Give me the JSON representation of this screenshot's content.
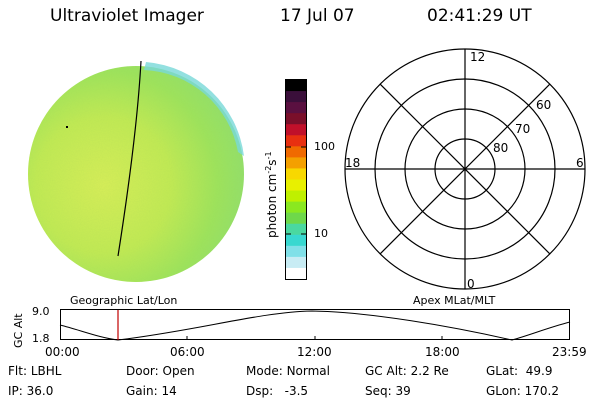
{
  "header": {
    "title": "Ultraviolet Imager",
    "date": "17 Jul 07",
    "time": "02:41:29 UT"
  },
  "colorbar": {
    "label": "photon cm",
    "label_exp1": "-2",
    "label_s": "s",
    "label_exp2": "-1",
    "tick_100": "100",
    "tick_10": "10",
    "colors": [
      "#000000",
      "#3a0f3a",
      "#5a1040",
      "#7a0f2a",
      "#c0102a",
      "#e83010",
      "#f06a00",
      "#f4a000",
      "#f8d800",
      "#e8f000",
      "#bff000",
      "#8ae820",
      "#6ed84a",
      "#4ad8a0",
      "#38d8d0",
      "#80e0e8",
      "#c8ecf4",
      "#ffffff"
    ]
  },
  "polar_plot": {
    "hour_labels": {
      "top": "12",
      "bottom": "0",
      "left": "18",
      "right": "6"
    },
    "lat_labels": [
      "60",
      "70",
      "80"
    ]
  },
  "timeline": {
    "left_label": "Geographic Lat/Lon",
    "right_label": "Apex MLat/MLT",
    "y_axis_label": "GC Alt",
    "y_top": "9.0",
    "y_bottom": "1.8",
    "x_ticks": [
      "00:00",
      "06:00",
      "12:00",
      "18:00",
      "23:59"
    ],
    "marker_time": "02:41"
  },
  "footer": {
    "flt_label": "Flt:",
    "flt": "LBHL",
    "ip_label": "IP:",
    "ip": "36.0",
    "door_label": "Door:",
    "door": "Open",
    "gain_label": "Gain:",
    "gain": "14",
    "mode_label": "Mode:",
    "mode": "Normal",
    "dsp_label": "Dsp:",
    "dsp": "-3.5",
    "gcalt_label": "GC Alt:",
    "gcalt": "2.2 Re",
    "seq_label": "Seq:",
    "seq": "39",
    "glat_label": "GLat:",
    "glat": "49.9",
    "glon_label": "GLon:",
    "glon": "170.2"
  }
}
